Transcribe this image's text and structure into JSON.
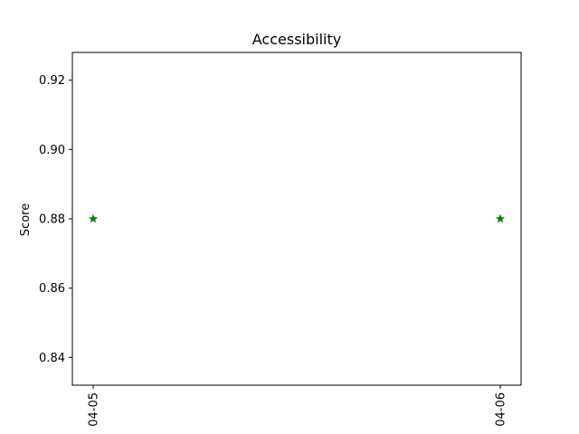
{
  "chart_data": {
    "type": "scatter",
    "title": "Accessibility",
    "xlabel": "",
    "ylabel": "Score",
    "x_categories": [
      "04-05",
      "04-06"
    ],
    "series": [
      {
        "values": [
          0.88,
          0.88
        ],
        "color": "#008000",
        "marker": "star"
      }
    ],
    "ylim": [
      0.832,
      0.928
    ],
    "yticks": [
      0.84,
      0.86,
      0.88,
      0.9,
      0.92
    ],
    "ytick_labels": [
      "0.84",
      "0.86",
      "0.88",
      "0.90",
      "0.92"
    ],
    "grid": false,
    "legend": "none"
  }
}
